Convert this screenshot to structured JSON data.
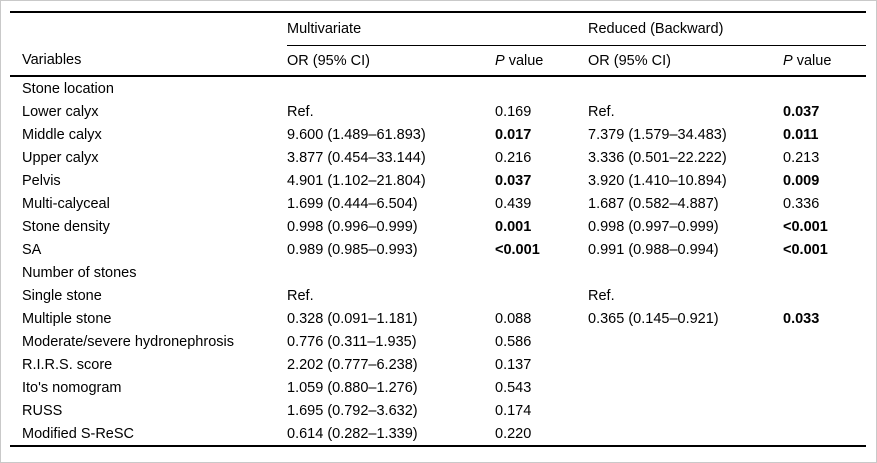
{
  "page": {
    "background": "#ffffff",
    "border_color": "#c9c9c9",
    "rule_color": "#000000",
    "text_color": "#000000"
  },
  "table": {
    "header": {
      "variables_label": "Variables",
      "group1_label": "Multivariate",
      "group2_label": "Reduced (Backward)",
      "or_label_1": "OR (95% CI)",
      "or_label_2": "OR (95% CI)",
      "p_label_italic": "P",
      "p_label_rest": " value"
    },
    "rows": [
      {
        "label": "Stone location",
        "or1": "",
        "p1": "",
        "or2": "",
        "p2": ""
      },
      {
        "label": "Lower calyx",
        "or1": "Ref.",
        "p1": "0.169",
        "or2": "Ref.",
        "p2": "0.037",
        "p2_bold": true
      },
      {
        "label": "Middle calyx",
        "or1": "9.600 (1.489–61.893)",
        "p1": "0.017",
        "p1_bold": true,
        "or2": "7.379 (1.579–34.483)",
        "p2": "0.011",
        "p2_bold": true
      },
      {
        "label": "Upper calyx",
        "or1": "3.877 (0.454–33.144)",
        "p1": "0.216",
        "or2": "3.336 (0.501–22.222)",
        "p2": "0.213"
      },
      {
        "label": "Pelvis",
        "or1": "4.901 (1.102–21.804)",
        "p1": "0.037",
        "p1_bold": true,
        "or2": "3.920 (1.410–10.894)",
        "p2": "0.009",
        "p2_bold": true
      },
      {
        "label": "Multi-calyceal",
        "or1": "1.699 (0.444–6.504)",
        "p1": "0.439",
        "or2": "1.687 (0.582–4.887)",
        "p2": "0.336"
      },
      {
        "label": "Stone density",
        "or1": "0.998 (0.996–0.999)",
        "p1": "0.001",
        "p1_bold": true,
        "or2": "0.998 (0.997–0.999)",
        "p2": "<0.001",
        "p2_bold": true
      },
      {
        "label": "SA",
        "or1": "0.989 (0.985–0.993)",
        "p1": "<0.001",
        "p1_bold": true,
        "or2": "0.991 (0.988–0.994)",
        "p2": "<0.001",
        "p2_bold": true
      },
      {
        "label": "Number of stones",
        "or1": "",
        "p1": "",
        "or2": "",
        "p2": ""
      },
      {
        "label": "Single stone",
        "or1": "Ref.",
        "p1": "",
        "or2": "Ref.",
        "p2": ""
      },
      {
        "label": "Multiple stone",
        "or1": "0.328 (0.091–1.181)",
        "p1": "0.088",
        "or2": "0.365 (0.145–0.921)",
        "p2": "0.033",
        "p2_bold": true
      },
      {
        "label": "Moderate/severe hydronephrosis",
        "or1": "0.776 (0.311–1.935)",
        "p1": "0.586",
        "or2": "",
        "p2": ""
      },
      {
        "label": "R.I.R.S. score",
        "or1": "2.202 (0.777–6.238)",
        "p1": "0.137",
        "or2": "",
        "p2": ""
      },
      {
        "label": "Ito's nomogram",
        "or1": "1.059 (0.880–1.276)",
        "p1": "0.543",
        "or2": "",
        "p2": ""
      },
      {
        "label": "RUSS",
        "or1": "1.695 (0.792–3.632)",
        "p1": "0.174",
        "or2": "",
        "p2": ""
      },
      {
        "label": "Modified S-ReSC",
        "or1": "0.614 (0.282–1.339)",
        "p1": "0.220",
        "or2": "",
        "p2": ""
      }
    ]
  }
}
